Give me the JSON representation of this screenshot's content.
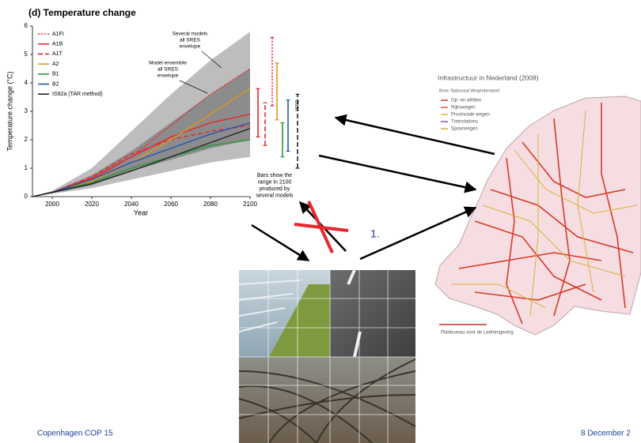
{
  "chart": {
    "type": "line",
    "title": "(d) Temperature change",
    "y_label": "Temperature change (°C)",
    "x_label": "Year",
    "x": [
      1990,
      2000,
      2020,
      2040,
      2060,
      2080,
      2100
    ],
    "xlim": [
      1990,
      2100
    ],
    "xticks": [
      2000,
      2020,
      2040,
      2060,
      2080,
      2100
    ],
    "ylim": [
      0,
      6
    ],
    "yticks": [
      0,
      1,
      2,
      3,
      4,
      5,
      6
    ],
    "envelopes": [
      {
        "lines": [
          "Several models",
          "all SRES",
          "envelope"
        ],
        "color": "#bdbdbd",
        "low": [
          0,
          0.1,
          0.3,
          0.6,
          0.9,
          1.2,
          1.4
        ],
        "high": [
          0,
          0.2,
          1.0,
          2.3,
          3.6,
          4.8,
          5.8
        ]
      },
      {
        "lines": [
          "Model ensemble",
          "all SRES",
          "envelope"
        ],
        "color": "#8c8c8c",
        "low": [
          0,
          0.12,
          0.4,
          0.9,
          1.3,
          1.7,
          2.0
        ],
        "high": [
          0,
          0.18,
          0.75,
          1.6,
          2.6,
          3.6,
          4.5
        ]
      }
    ],
    "series": [
      {
        "name": "A1FI",
        "color": "#e8262b",
        "dash": "dotted",
        "values": [
          0,
          0.15,
          0.6,
          1.4,
          2.5,
          3.6,
          4.5
        ]
      },
      {
        "name": "A1B",
        "color": "#e8262b",
        "dash": "solid",
        "values": [
          0,
          0.15,
          0.65,
          1.4,
          2.1,
          2.6,
          2.9
        ]
      },
      {
        "name": "A1T",
        "color": "#e8262b",
        "dash": "dashed",
        "values": [
          0,
          0.15,
          0.7,
          1.5,
          2.0,
          2.3,
          2.5
        ]
      },
      {
        "name": "A2",
        "color": "#e3951c",
        "dash": "solid",
        "values": [
          0,
          0.15,
          0.55,
          1.2,
          2.0,
          2.9,
          3.8
        ]
      },
      {
        "name": "B1",
        "color": "#2b9a3c",
        "dash": "solid",
        "values": [
          0,
          0.15,
          0.5,
          1.0,
          1.4,
          1.8,
          2.0
        ]
      },
      {
        "name": "B2",
        "color": "#2456b4",
        "dash": "solid",
        "values": [
          0,
          0.15,
          0.6,
          1.2,
          1.7,
          2.2,
          2.6
        ]
      },
      {
        "name": "IS92a (TAR method)",
        "color": "#222222",
        "dash": "solid",
        "values": [
          0,
          0.15,
          0.45,
          0.9,
          1.4,
          1.9,
          2.4
        ]
      }
    ],
    "bars": {
      "lines": [
        "Bars show the",
        "range in 2100",
        "produced by",
        "several models"
      ],
      "items": [
        {
          "color": "#e8262b",
          "dash": "solid",
          "low": 2.1,
          "high": 3.8
        },
        {
          "color": "#e8262b",
          "dash": "dashed",
          "low": 1.8,
          "high": 3.3
        },
        {
          "color": "#e8262b",
          "dash": "dotted",
          "low": 3.2,
          "high": 5.6
        },
        {
          "color": "#e3951c",
          "dash": "solid",
          "low": 2.7,
          "high": 4.7
        },
        {
          "color": "#2b9a3c",
          "dash": "solid",
          "low": 1.4,
          "high": 2.6
        },
        {
          "color": "#2456b4",
          "dash": "solid",
          "low": 1.6,
          "high": 3.4
        },
        {
          "name": "IS92",
          "color": "#222222",
          "dash": "dashed",
          "low": 1.0,
          "high": 3.6
        }
      ]
    }
  },
  "map": {
    "title": "Infrastructuur in Nederland (2008)",
    "source": "Bron: Nationaal Wegenbestand",
    "legend": [
      "Op- en afritten",
      "Rijkswegen",
      "Provinciale wegen",
      "Treinstations",
      "Spoorwegen"
    ],
    "credit": "Planbureau voor de Leefomgeving"
  },
  "callout": "1.",
  "footer": {
    "left": "Copenhagen COP 15",
    "right": "8 December 2"
  }
}
